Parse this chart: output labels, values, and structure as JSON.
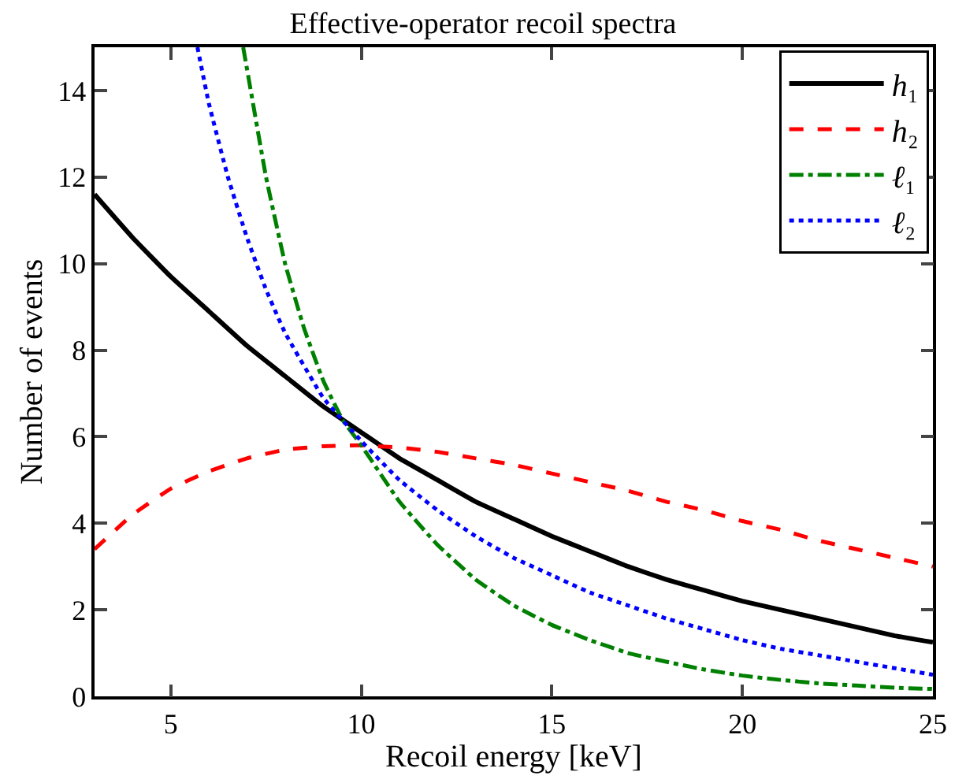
{
  "chart_data": {
    "type": "line",
    "title": "Effective-operator recoil spectra",
    "xlabel": "Recoil energy [keV]",
    "ylabel": "Number of events",
    "xlim": [
      3,
      25
    ],
    "ylim": [
      0,
      15
    ],
    "xticks": [
      5,
      10,
      15,
      20,
      25
    ],
    "yticks": [
      0,
      2,
      4,
      6,
      8,
      10,
      12,
      14
    ],
    "legend": "top right",
    "marker": "none",
    "series": [
      {
        "name": "h₁",
        "color": "#000000",
        "line_style": "solid",
        "x": [
          3,
          4,
          5,
          6,
          7,
          8,
          9,
          10,
          11,
          12,
          13,
          14,
          15,
          16,
          17,
          18,
          19,
          20,
          21,
          22,
          23,
          24,
          25
        ],
        "values": [
          11.6,
          10.6,
          9.7,
          8.9,
          8.1,
          7.4,
          6.7,
          6.1,
          5.5,
          5.0,
          4.5,
          4.1,
          3.7,
          3.35,
          3.0,
          2.7,
          2.45,
          2.2,
          2.0,
          1.8,
          1.6,
          1.4,
          1.25
        ]
      },
      {
        "name": "h₂",
        "color": "#ff0000",
        "line_style": "dashed",
        "x": [
          3,
          4,
          5,
          6,
          7,
          8,
          9,
          10,
          11,
          12,
          13,
          14,
          15,
          16,
          17,
          18,
          19,
          20,
          21,
          22,
          23,
          24,
          25
        ],
        "values": [
          3.4,
          4.2,
          4.8,
          5.2,
          5.5,
          5.7,
          5.78,
          5.8,
          5.75,
          5.65,
          5.5,
          5.35,
          5.15,
          4.95,
          4.75,
          4.5,
          4.3,
          4.05,
          3.85,
          3.6,
          3.4,
          3.2,
          3.0
        ]
      },
      {
        "name": "ℓ₁",
        "color": "#008000",
        "line_style": "dashdot",
        "x": [
          6.9,
          7,
          7.5,
          8,
          8.5,
          9,
          9.5,
          10,
          11,
          12,
          13,
          14,
          15,
          16,
          17,
          18,
          19,
          20,
          21,
          22,
          23,
          24,
          25
        ],
        "values": [
          15,
          14.5,
          12,
          10,
          8.5,
          7.3,
          6.4,
          5.8,
          4.5,
          3.5,
          2.7,
          2.1,
          1.65,
          1.3,
          1.0,
          0.8,
          0.62,
          0.48,
          0.38,
          0.3,
          0.25,
          0.2,
          0.17
        ]
      },
      {
        "name": "ℓ₂",
        "color": "#0000ff",
        "line_style": "dotted",
        "x": [
          5.7,
          6,
          6.5,
          7,
          7.5,
          8,
          9,
          10,
          11,
          12,
          13,
          14,
          15,
          16,
          17,
          18,
          19,
          20,
          21,
          22,
          23,
          24,
          25
        ],
        "values": [
          15,
          13.7,
          12,
          10.6,
          9.4,
          8.4,
          6.9,
          5.9,
          5.0,
          4.3,
          3.7,
          3.2,
          2.8,
          2.4,
          2.1,
          1.8,
          1.55,
          1.3,
          1.1,
          0.95,
          0.8,
          0.65,
          0.5
        ]
      }
    ]
  }
}
